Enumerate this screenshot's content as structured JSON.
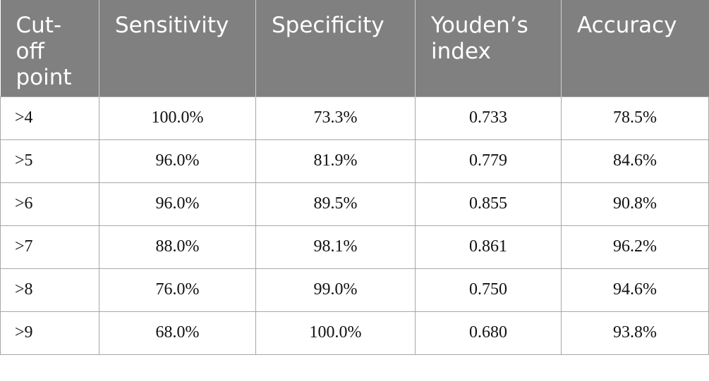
{
  "table": {
    "headers": [
      "Cut-off point",
      "Sensitivity",
      "Specificity",
      "Youden’s index",
      "Accuracy"
    ],
    "rows": [
      [
        ">4",
        "100.0%",
        "73.3%",
        "0.733",
        "78.5%"
      ],
      [
        ">5",
        "96.0%",
        "81.9%",
        "0.779",
        "84.6%"
      ],
      [
        ">6",
        "96.0%",
        "89.5%",
        "0.855",
        "90.8%"
      ],
      [
        ">7",
        "88.0%",
        "98.1%",
        "0.861",
        "96.2%"
      ],
      [
        ">8",
        "76.0%",
        "99.0%",
        "0.750",
        "94.6%"
      ],
      [
        ">9",
        "68.0%",
        "100.0%",
        "0.680",
        "93.8%"
      ]
    ]
  },
  "colors": {
    "header_background": "#808080",
    "header_text": "#ffffff",
    "grid_line": "#a7a7a7"
  }
}
